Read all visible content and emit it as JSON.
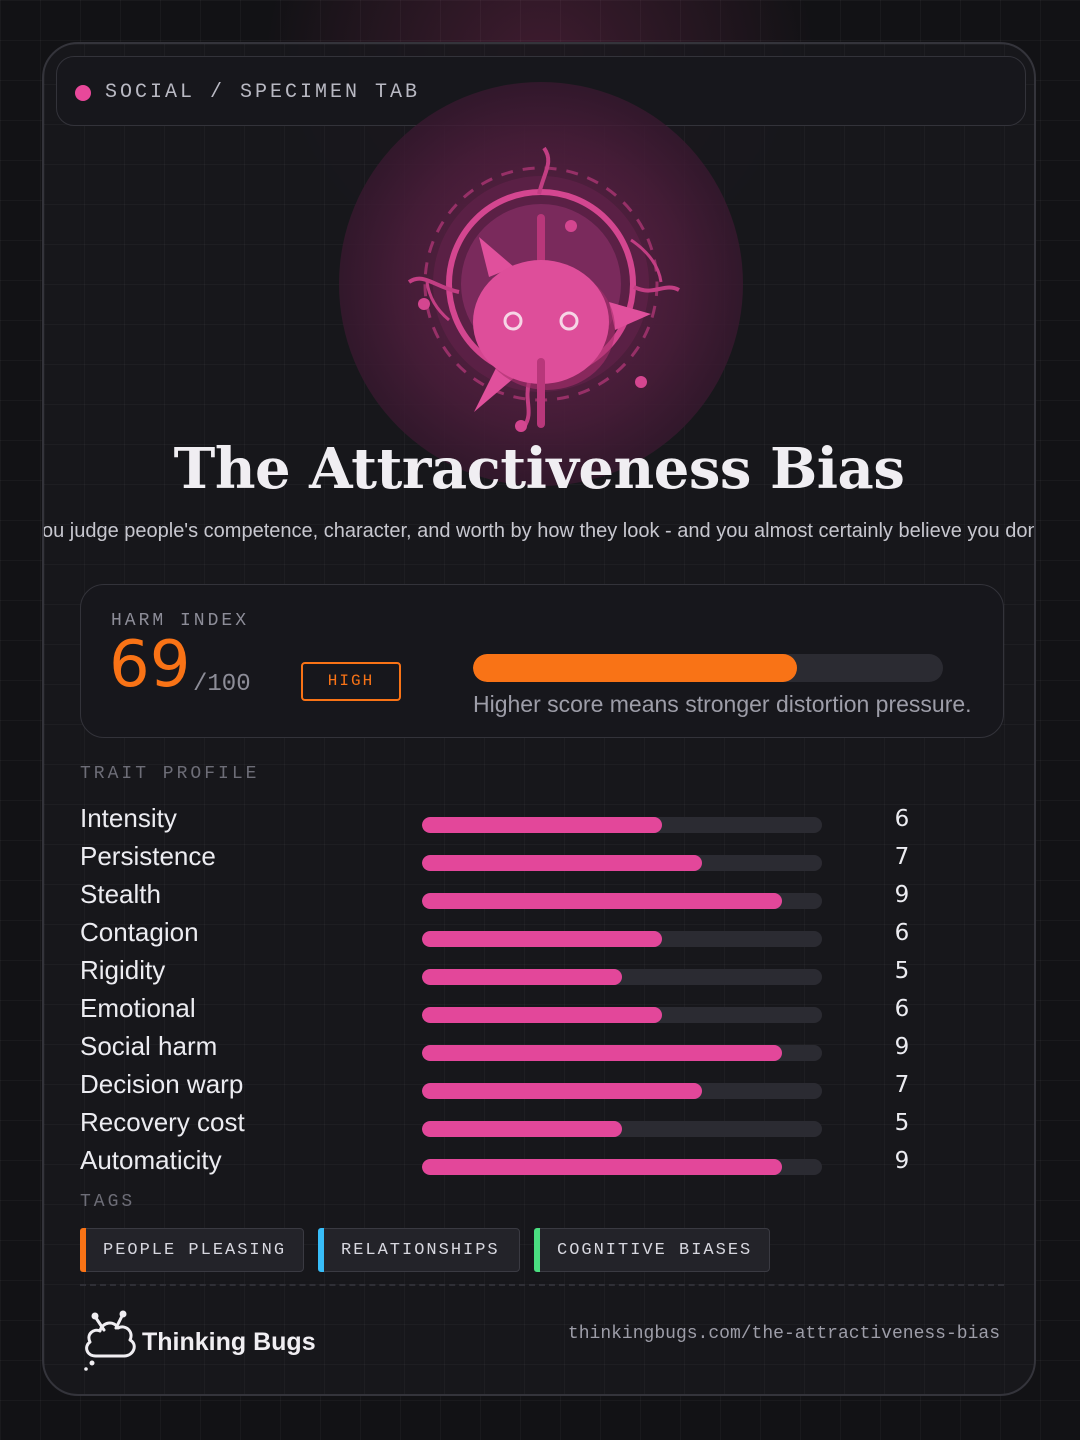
{
  "header": {
    "label": "SOCIAL / SPECIMEN TAB",
    "dot_color": "#e8489a"
  },
  "mascot": {
    "icon": "pink-bug-compass-icon"
  },
  "title": "The Attractiveness Bias",
  "subtitle": "You judge people's competence, character, and worth by how they look - and you almost certainly believe you don't.",
  "harm_index": {
    "label": "HARM INDEX",
    "score": "69",
    "max": "/100",
    "level": "HIGH",
    "fraction": 0.69,
    "note": "Higher score means stronger distortion pressure.",
    "color": "#f97316"
  },
  "trait_profile": {
    "label": "TRAIT PROFILE",
    "max": 10,
    "bar_color": "#e3479a",
    "traits": [
      {
        "name": "Intensity",
        "value": "6"
      },
      {
        "name": "Persistence",
        "value": "7"
      },
      {
        "name": "Stealth",
        "value": "9"
      },
      {
        "name": "Contagion",
        "value": "6"
      },
      {
        "name": "Rigidity",
        "value": "5"
      },
      {
        "name": "Emotional",
        "value": "6"
      },
      {
        "name": "Social harm",
        "value": "9"
      },
      {
        "name": "Decision warp",
        "value": "7"
      },
      {
        "name": "Recovery cost",
        "value": "5"
      },
      {
        "name": "Automaticity",
        "value": "9"
      }
    ]
  },
  "tags": {
    "label": "TAGS",
    "items": [
      {
        "label": "PEOPLE PLEASING",
        "color": "#f97316"
      },
      {
        "label": "RELATIONSHIPS",
        "color": "#38bdf8"
      },
      {
        "label": "COGNITIVE BIASES",
        "color": "#4ade80"
      }
    ]
  },
  "footer": {
    "brand_name": "Thinking Bugs",
    "brand_icon": "cloud-bug-logo-icon",
    "url": "thinkingbugs.com/the-attractiveness-bias"
  }
}
